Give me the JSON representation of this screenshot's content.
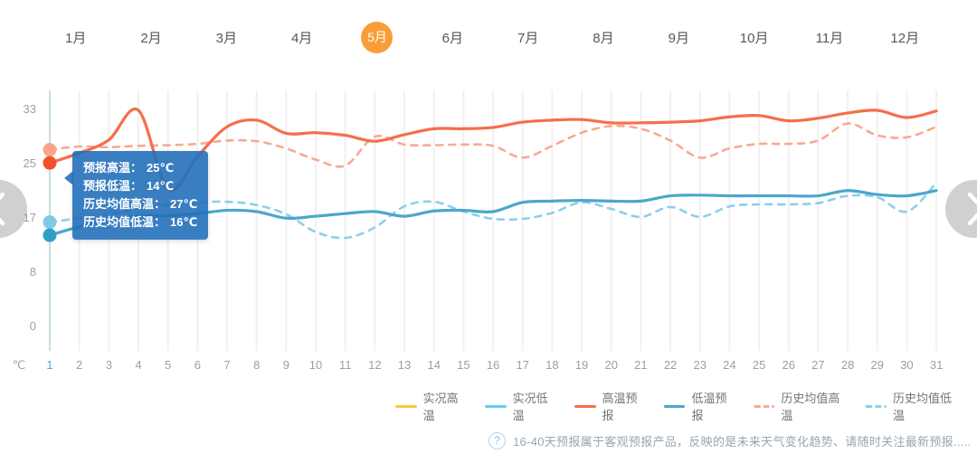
{
  "months": {
    "items": [
      "1月",
      "2月",
      "3月",
      "4月",
      "5月",
      "6月",
      "7月",
      "8月",
      "9月",
      "10月",
      "11月",
      "12月"
    ],
    "selected_index": 4
  },
  "chart_data": {
    "type": "line",
    "x": [
      1,
      2,
      3,
      4,
      5,
      6,
      7,
      8,
      9,
      10,
      11,
      12,
      13,
      14,
      15,
      16,
      17,
      18,
      19,
      20,
      21,
      22,
      23,
      24,
      25,
      26,
      27,
      28,
      29,
      30,
      31
    ],
    "y_ticks": [
      33,
      25,
      17,
      8,
      0
    ],
    "y_unit": "℃",
    "ylim": [
      0,
      33
    ],
    "grid": "vertical-only",
    "legend_position": "bottom",
    "selected_day": 1,
    "series": [
      {
        "key": "actual-high",
        "name": "实况高温",
        "color": "#FFC53D",
        "style": "solid",
        "values": []
      },
      {
        "key": "actual-low",
        "name": "实况低温",
        "color": "#5FD2F2",
        "style": "solid",
        "values": []
      },
      {
        "key": "hist-avg-high",
        "name": "历史均值高温",
        "color": "#F9A98F",
        "dot_color": "#F8A58B",
        "style": "dashed",
        "values": [
          27,
          27.5,
          27.4,
          27.6,
          27.7,
          27.9,
          28.4,
          28.3,
          27.2,
          25.5,
          24.6,
          29,
          27.8,
          27.7,
          27.8,
          27.6,
          25.8,
          27.6,
          29.6,
          30.6,
          30.2,
          28.4,
          25.8,
          27.2,
          27.9,
          27.9,
          28.4,
          31,
          29.2,
          28.9,
          30.5
        ]
      },
      {
        "key": "hist-avg-low",
        "name": "历史均值低温",
        "color": "#8AD0EA",
        "dot_color": "#7FC9E6",
        "style": "dashed",
        "values": [
          16,
          16.6,
          17.2,
          18,
          18.6,
          19,
          19.1,
          18.6,
          17.2,
          14.5,
          13.6,
          15.2,
          18.4,
          19.1,
          17.6,
          16.5,
          16.5,
          17.4,
          19,
          18,
          16.8,
          18.3,
          16.8,
          18.4,
          18.7,
          18.7,
          18.9,
          20,
          19.8,
          17.6,
          22
        ]
      },
      {
        "key": "forecast-high",
        "name": "高温预报",
        "color": "#F66E49",
        "dot_color": "#F1502B",
        "style": "solid",
        "values": [
          25,
          26.5,
          28.5,
          33,
          21,
          26,
          30.5,
          31.5,
          29.5,
          29.6,
          29.2,
          28.3,
          29.3,
          30.2,
          30.2,
          30.4,
          31.2,
          31.5,
          31.6,
          31.1,
          31.1,
          31.2,
          31.4,
          32,
          32.2,
          31.4,
          31.8,
          32.6,
          33,
          31.9,
          32.9
        ]
      },
      {
        "key": "forecast-low",
        "name": "低温预报",
        "color": "#4BA7CA",
        "dot_color": "#2E9EC6",
        "style": "solid",
        "values": [
          14,
          15.3,
          16.3,
          16.9,
          17,
          17.3,
          17.8,
          17.6,
          16.6,
          16.9,
          17.3,
          17.6,
          16.9,
          17.7,
          17.8,
          17.6,
          19,
          19.2,
          19.3,
          19.2,
          19.2,
          20,
          20.1,
          20,
          20,
          20,
          20,
          20.8,
          20.2,
          20,
          20.8
        ]
      }
    ],
    "legend_order": [
      "actual-high",
      "actual-low",
      "forecast-high",
      "forecast-low",
      "hist-avg-high",
      "hist-avg-low"
    ]
  },
  "tooltip": {
    "rows": [
      {
        "label": "预报高温：",
        "value": "25℃"
      },
      {
        "label": "预报低温：",
        "value": "14℃"
      },
      {
        "label": "历史均值高温：",
        "value": "27℃"
      },
      {
        "label": "历史均值低温：",
        "value": "16℃"
      }
    ]
  },
  "footnote": {
    "icon": "?",
    "text": "16-40天预报属于客观预报产品，反映的是未来天气变化趋势、请随时关注最新预报....."
  }
}
